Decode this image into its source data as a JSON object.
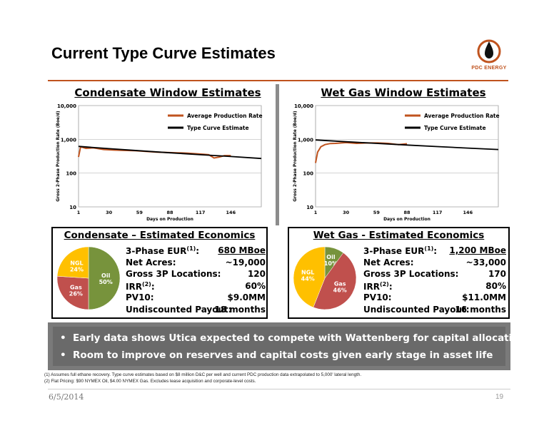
{
  "slide": {
    "title": "Current Type Curve Estimates",
    "date": "6/5/2014",
    "page_number": "19",
    "logo_text": "PDC ENERGY",
    "colors": {
      "accent": "#c0531e",
      "oil": "#77933c",
      "gas": "#c0504d",
      "ngl": "#ffc000"
    }
  },
  "chart_data": [
    {
      "type": "line",
      "title": "Condensate Window Estimates",
      "xlabel": "Days on Production",
      "ylabel": "Gross 2-Phase Production Rate (Boe/d)",
      "yscale": "log",
      "ylim": [
        10,
        10000
      ],
      "xlim": [
        1,
        175
      ],
      "x_ticks": [
        "1",
        "30",
        "59",
        "88",
        "117",
        "146"
      ],
      "y_ticks": [
        "10",
        "100",
        "1,000",
        "10,000"
      ],
      "grid": true,
      "legend": "top-right",
      "series": [
        {
          "name": "Average Production Rate",
          "color": "#c0531e",
          "x": [
            1,
            3,
            8,
            15,
            25,
            35,
            45,
            55,
            65,
            75,
            85,
            95,
            105,
            115,
            125,
            130,
            135,
            140,
            146
          ],
          "y": [
            300,
            600,
            540,
            560,
            500,
            480,
            470,
            460,
            440,
            420,
            410,
            400,
            390,
            370,
            350,
            280,
            300,
            330,
            330
          ]
        },
        {
          "name": "Type Curve Estimate",
          "color": "#000000",
          "x": [
            1,
            30,
            59,
            88,
            117,
            146,
            175
          ],
          "y": [
            620,
            530,
            460,
            400,
            350,
            310,
            270
          ]
        }
      ]
    },
    {
      "type": "line",
      "title": "Wet Gas Window Estimates",
      "xlabel": "Days on Production",
      "ylabel": "Gross 2-Phase Production Rate (Boe/d)",
      "yscale": "log",
      "ylim": [
        10,
        10000
      ],
      "xlim": [
        1,
        175
      ],
      "x_ticks": [
        "1",
        "30",
        "59",
        "88",
        "117",
        "146"
      ],
      "y_ticks": [
        "10",
        "100",
        "1,000",
        "10,000"
      ],
      "grid": true,
      "legend": "top-right",
      "series": [
        {
          "name": "Average Production Rate",
          "color": "#c0531e",
          "x": [
            1,
            3,
            6,
            10,
            15,
            20,
            30,
            40,
            50,
            60,
            70,
            80,
            88
          ],
          "y": [
            200,
            420,
            600,
            700,
            750,
            760,
            800,
            760,
            780,
            780,
            760,
            700,
            740
          ]
        },
        {
          "name": "Type Curve Estimate",
          "color": "#000000",
          "x": [
            1,
            30,
            59,
            88,
            117,
            146,
            175
          ],
          "y": [
            960,
            850,
            760,
            680,
            610,
            550,
            500
          ]
        }
      ]
    },
    {
      "type": "pie",
      "slices": [
        {
          "label": "Oil",
          "value": 50,
          "display": "50%",
          "color": "#77933c"
        },
        {
          "label": "Gas",
          "value": 26,
          "display": "26%",
          "color": "#c0504d"
        },
        {
          "label": "NGL",
          "value": 24,
          "display": "24%",
          "color": "#ffc000"
        }
      ]
    },
    {
      "type": "pie",
      "slices": [
        {
          "label": "Oil",
          "value": 10,
          "display": "10%",
          "color": "#77933c"
        },
        {
          "label": "Gas",
          "value": 46,
          "display": "46%",
          "color": "#c0504d"
        },
        {
          "label": "NGL",
          "value": 44,
          "display": "44%",
          "color": "#ffc000"
        }
      ]
    }
  ],
  "econ_left": {
    "title": "Condensate – Estimated Economics",
    "rows": [
      {
        "label": "3-Phase EUR",
        "sup": "(1)",
        "suffix": ":",
        "value": "680 MBoe"
      },
      {
        "label": "Net Acres:",
        "sup": "",
        "suffix": "",
        "value": "~19,000"
      },
      {
        "label": "Gross 3P Locations:",
        "sup": "",
        "suffix": "",
        "value": "120"
      },
      {
        "label": "IRR",
        "sup": "(2)",
        "suffix": ":",
        "value": "60%"
      },
      {
        "label": "PV10:",
        "sup": "",
        "suffix": "",
        "value": "$9.0MM"
      },
      {
        "label": "Undiscounted Payout:",
        "sup": "",
        "suffix": "",
        "value": "18 months"
      }
    ]
  },
  "econ_right": {
    "title": "Wet Gas - Estimated Economics",
    "rows": [
      {
        "label": "3-Phase EUR",
        "sup": "(1)",
        "suffix": ":",
        "value": "1,200 MBoe"
      },
      {
        "label": "Net Acres:",
        "sup": "",
        "suffix": "",
        "value": "~33,000"
      },
      {
        "label": "Gross 3P Locations:",
        "sup": "",
        "suffix": "",
        "value": "170"
      },
      {
        "label": "IRR",
        "sup": "(2)",
        "suffix": ":",
        "value": "80%"
      },
      {
        "label": "PV10:",
        "sup": "",
        "suffix": "",
        "value": "$11.0MM"
      },
      {
        "label": "Undiscounted Payout:",
        "sup": "",
        "suffix": "",
        "value": "16 months"
      }
    ]
  },
  "bullets": [
    "Early data shows Utica expected to compete with Wattenberg for capital allocation",
    "Room to improve on reserves and capital costs given early stage in asset life"
  ],
  "footnotes": [
    "(1)  Assumes full ethane recovery. Type curve estimates based on $8 million D&C per well and current  PDC production data extrapolated to 5,000' lateral length.",
    "(2) Flat Pricing: $90 NYMEX Oil, $4.00 NYMEX Gas. Excludes lease acquisition and corporate-level costs."
  ]
}
